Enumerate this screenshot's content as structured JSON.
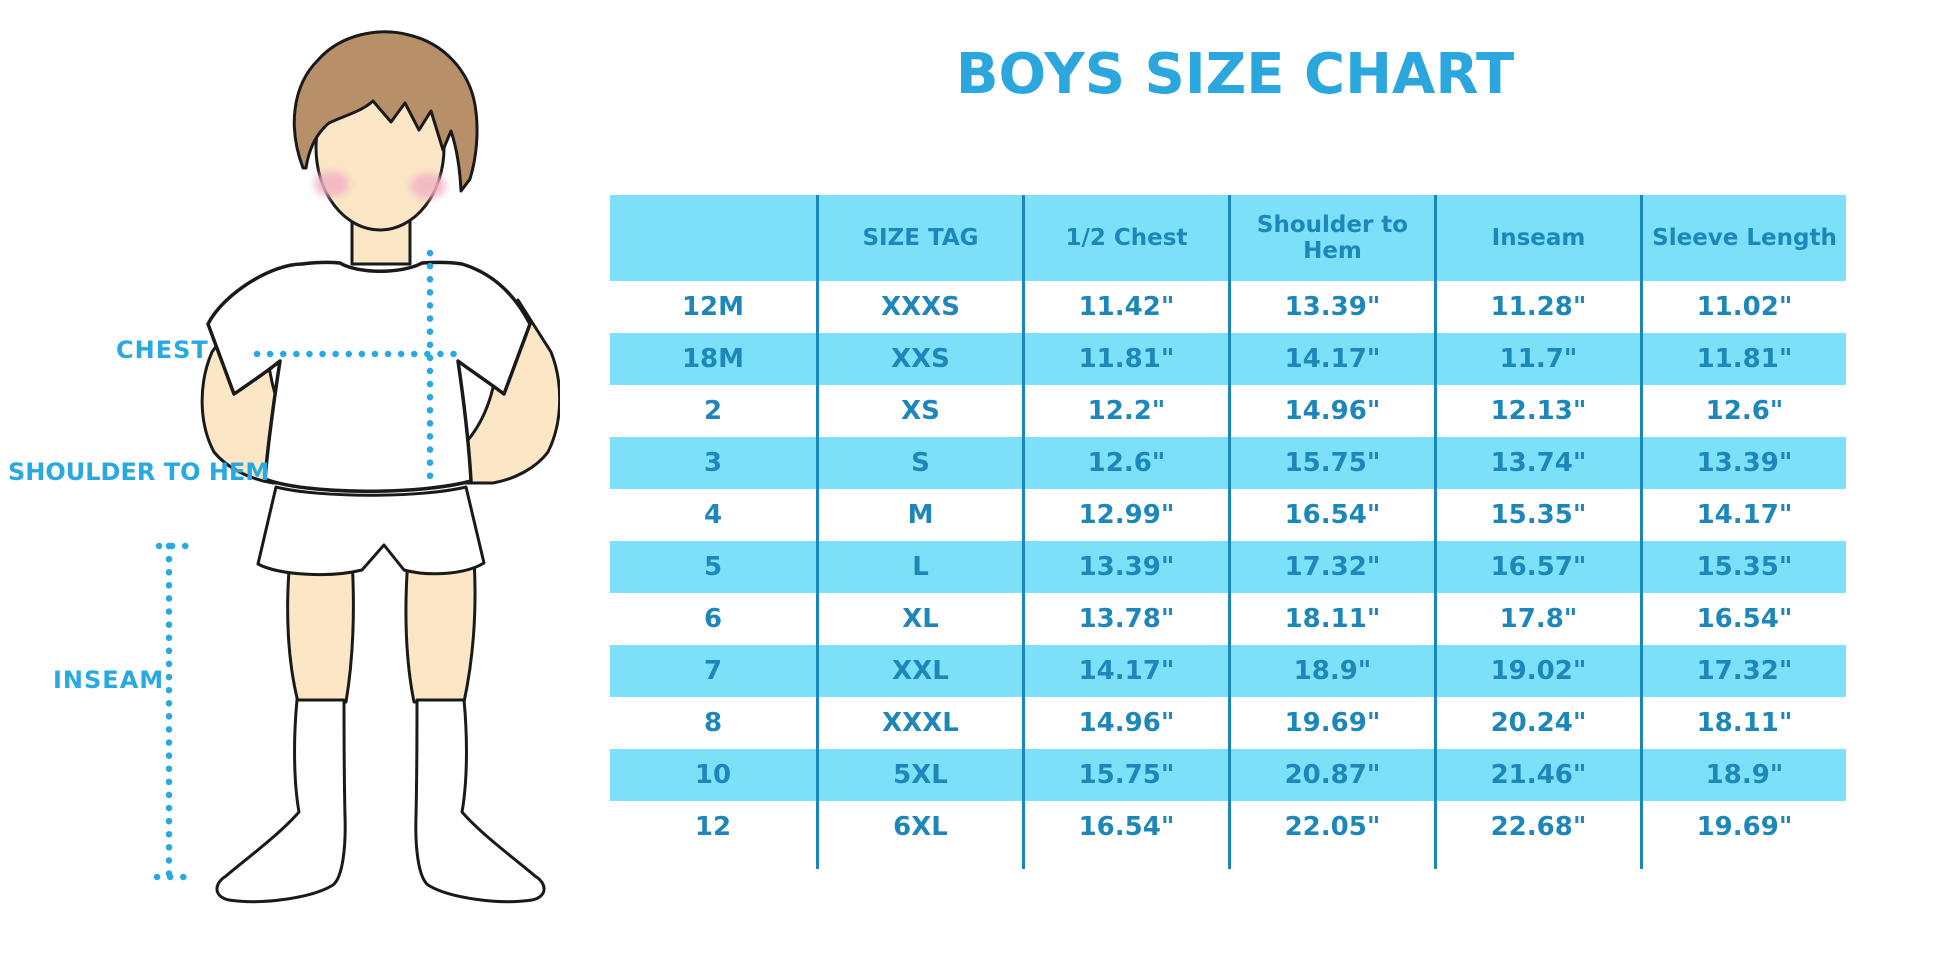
{
  "page": {
    "title": "BOYS SIZE CHART"
  },
  "illustration": {
    "figure": "cartoon boy in white t-shirt, shorts and knee socks with dotted measurement guides",
    "labels": {
      "chest": "CHEST",
      "shoulder_to_hem": "SHOULDER TO HEM",
      "inseam": "INSEAM"
    }
  },
  "colors": {
    "accent_cyan": "#29A9E1",
    "title_blue": "#2BA7DE",
    "table_fill_light": "#7BE0F8",
    "table_text": "#1E87BA",
    "table_border": "#1888BC",
    "skin": "#FBE7C6",
    "hair": "#B7906A",
    "blush": "#F2B3C3",
    "outline": "#1A1A1A"
  },
  "chart_data": {
    "type": "table",
    "title": "BOYS SIZE CHART",
    "units": "inches",
    "columns": [
      "",
      "SIZE TAG",
      "1/2 Chest",
      "Shoulder to Hem",
      "Inseam",
      "Sleeve Length"
    ],
    "rows": [
      [
        "12M",
        "XXXS",
        "11.42\"",
        "13.39\"",
        "11.28\"",
        "11.02\""
      ],
      [
        "18M",
        "XXS",
        "11.81\"",
        "14.17\"",
        "11.7\"",
        "11.81\""
      ],
      [
        "2",
        "XS",
        "12.2\"",
        "14.96\"",
        "12.13\"",
        "12.6\""
      ],
      [
        "3",
        "S",
        "12.6\"",
        "15.75\"",
        "13.74\"",
        "13.39\""
      ],
      [
        "4",
        "M",
        "12.99\"",
        "16.54\"",
        "15.35\"",
        "14.17\""
      ],
      [
        "5",
        "L",
        "13.39\"",
        "17.32\"",
        "16.57\"",
        "15.35\""
      ],
      [
        "6",
        "XL",
        "13.78\"",
        "18.11\"",
        "17.8\"",
        "16.54\""
      ],
      [
        "7",
        "XXL",
        "14.17\"",
        "18.9\"",
        "19.02\"",
        "17.32\""
      ],
      [
        "8",
        "XXXL",
        "14.96\"",
        "19.69\"",
        "20.24\"",
        "18.11\""
      ],
      [
        "10",
        "5XL",
        "15.75\"",
        "20.87\"",
        "21.46\"",
        "18.9\""
      ],
      [
        "12",
        "6XL",
        "16.54\"",
        "22.05\"",
        "22.68\"",
        "19.69\""
      ]
    ],
    "layout_hints": {
      "row_striping": "rows alternate white / light cyan starting with white",
      "header_background": "light cyan",
      "grid": "vertical column separators only, no horizontal lines"
    }
  }
}
